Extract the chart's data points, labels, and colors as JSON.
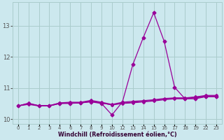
{
  "xlabel": "Windchill (Refroidissement éolien,°C)",
  "bg_color": "#cce8ee",
  "line_color": "#990099",
  "grid_color": "#aacccc",
  "hours": [
    0,
    1,
    2,
    3,
    4,
    6,
    7,
    8,
    9,
    10,
    12,
    13,
    14,
    15,
    16,
    17,
    18,
    19,
    22,
    23
  ],
  "tick_labels": [
    "0",
    "1",
    "2",
    "3",
    "4",
    "",
    "6",
    "7",
    "8",
    "9",
    "10",
    "",
    "12",
    "13",
    "",
    "15",
    "16",
    "17",
    "18",
    "19",
    "",
    "",
    "22",
    "23"
  ],
  "series": [
    [
      10.42,
      10.5,
      10.42,
      10.42,
      10.5,
      10.5,
      10.52,
      10.55,
      10.5,
      10.13,
      10.55,
      11.75,
      12.62,
      13.42,
      12.5,
      11.02,
      10.65,
      10.65,
      10.72,
      10.72
    ],
    [
      10.42,
      10.47,
      10.42,
      10.42,
      10.5,
      10.52,
      10.52,
      10.58,
      10.52,
      10.45,
      10.5,
      10.52,
      10.55,
      10.58,
      10.62,
      10.65,
      10.65,
      10.68,
      10.72,
      10.72
    ],
    [
      10.42,
      10.49,
      10.43,
      10.43,
      10.51,
      10.51,
      10.51,
      10.57,
      10.51,
      10.46,
      10.51,
      10.54,
      10.57,
      10.6,
      10.64,
      10.67,
      10.67,
      10.7,
      10.74,
      10.74
    ],
    [
      10.42,
      10.51,
      10.43,
      10.43,
      10.52,
      10.54,
      10.54,
      10.6,
      10.54,
      10.47,
      10.54,
      10.57,
      10.59,
      10.62,
      10.66,
      10.68,
      10.68,
      10.71,
      10.76,
      10.76
    ]
  ],
  "ylim": [
    9.85,
    13.75
  ],
  "yticks": [
    10,
    11,
    12,
    13
  ],
  "figsize": [
    3.2,
    2.0
  ],
  "dpi": 100
}
